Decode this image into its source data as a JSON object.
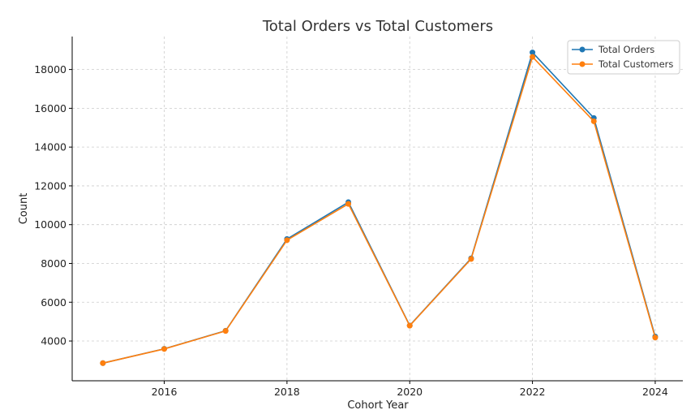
{
  "chart_data": {
    "type": "line",
    "title": "Total Orders vs Total Customers",
    "xlabel": "Cohort Year",
    "ylabel": "Count",
    "x": [
      2015,
      2016,
      2017,
      2018,
      2019,
      2020,
      2021,
      2022,
      2023,
      2024
    ],
    "xlim": [
      2014.5,
      2024.45
    ],
    "ylim": [
      1950,
      19700
    ],
    "x_ticks": [
      2016,
      2018,
      2020,
      2022,
      2024
    ],
    "y_ticks": [
      4000,
      6000,
      8000,
      10000,
      12000,
      14000,
      16000,
      18000
    ],
    "grid": true,
    "legend_position": "top-right",
    "series": [
      {
        "name": "Total Orders",
        "color": "#1f77b4",
        "values": [
          2860,
          3600,
          4530,
          9260,
          11160,
          4800,
          8260,
          18880,
          15500,
          4230
        ]
      },
      {
        "name": "Total Customers",
        "color": "#ff7f0e",
        "values": [
          2860,
          3590,
          4520,
          9200,
          11070,
          4790,
          8230,
          18650,
          15330,
          4180
        ]
      }
    ]
  }
}
